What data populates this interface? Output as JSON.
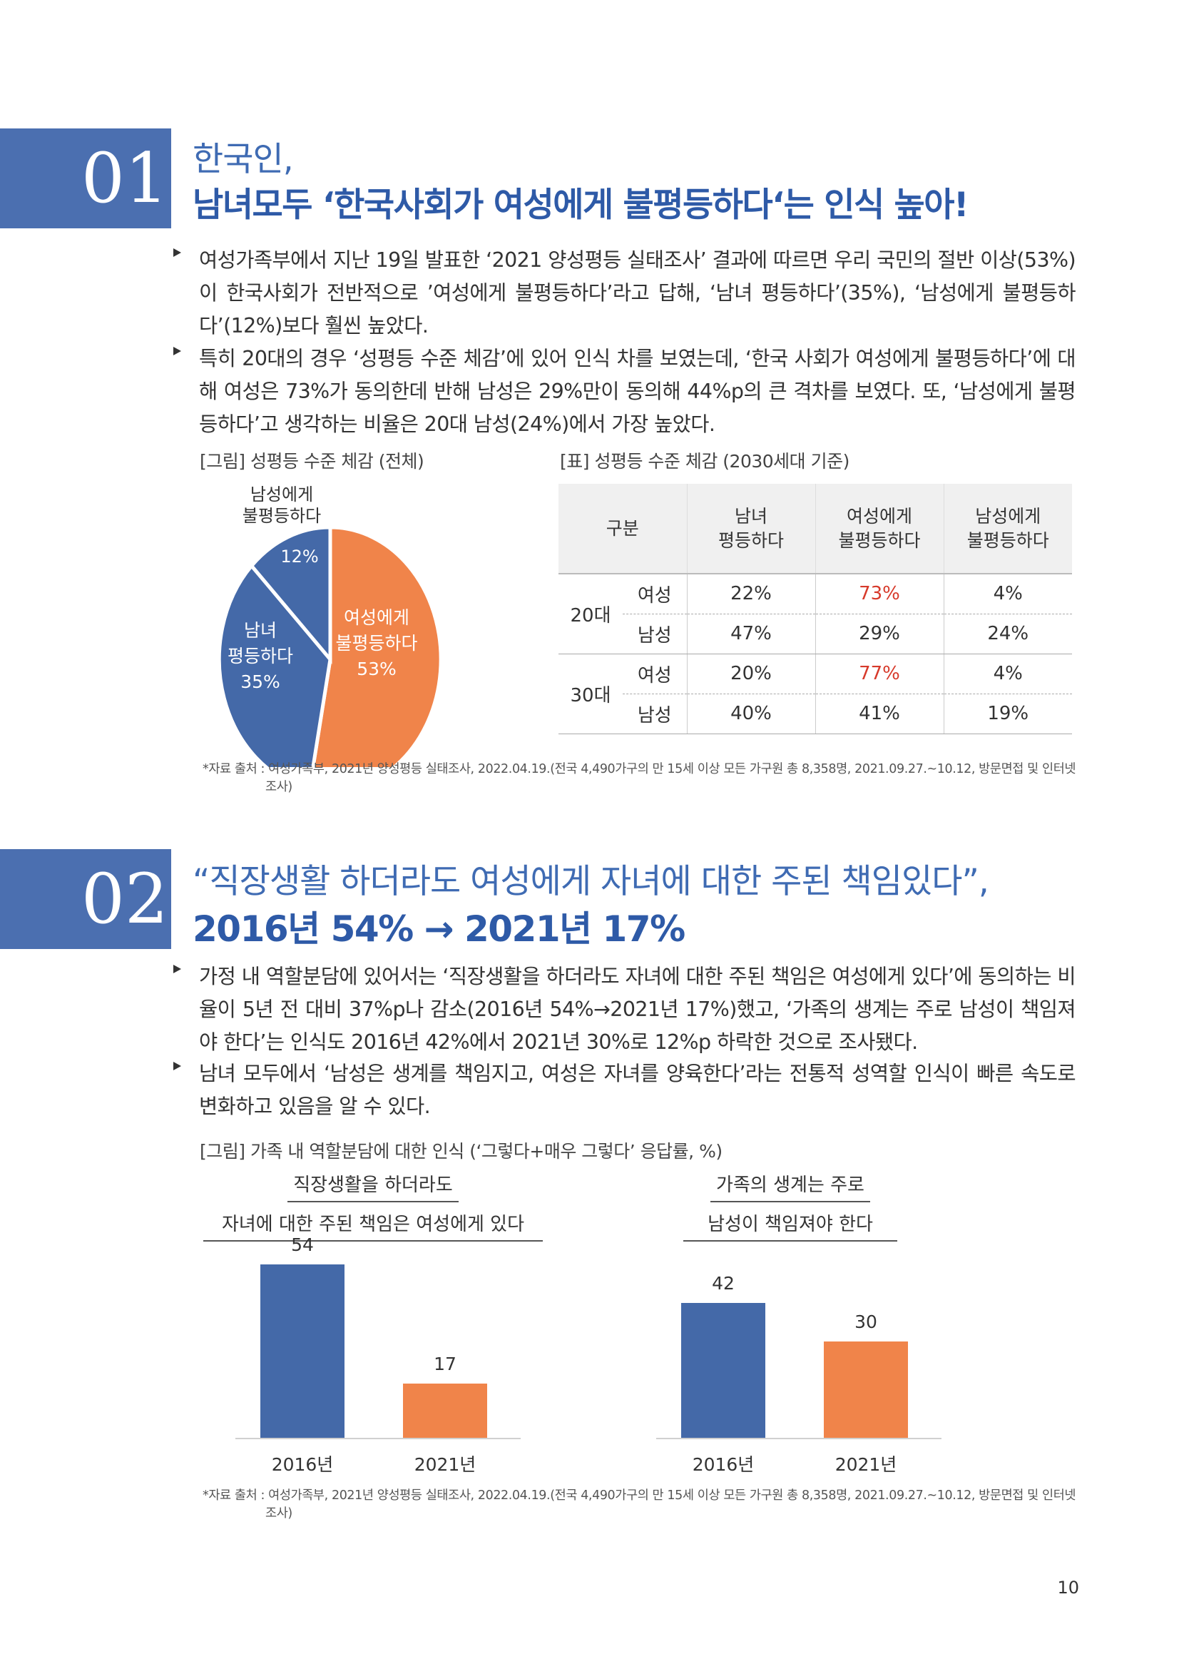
{
  "section1": {
    "number": "01",
    "title_line1": "한국인,",
    "title_line2": "남녀모두 ‘한국사회가 여성에게 불평등하다‘는 인식 높아!",
    "bullets": [
      "여성가족부에서 지난 19일 발표한 ‘2021 양성평등 실태조사’ 결과에 따르면 우리 국민의 절반 이상(53%)이 한국사회가 전반적으로 ’여성에게 불평등하다’라고 답해, ‘남녀 평등하다’(35%), ‘남성에게 불평등하다’(12%)보다 훨씬 높았다.",
      "특히 20대의 경우 ‘성평등 수준 체감’에 있어 인식 차를 보였는데, ‘한국 사회가 여성에게 불평등하다’에 대해 여성은 73%가 동의한데 반해 남성은 29%만이 동의해 44%p의 큰 격차를 보였다. 또, ‘남성에게 불평등하다’고 생각하는 비율은 20대 남성(24%)에서 가장 높았다."
    ],
    "figure_caption": "[그림] 성평등 수준 체감 (전체)",
    "table_caption": "[표] 성평등 수준 체감 (2030세대 기준)",
    "pie": {
      "slices": [
        {
          "label_lines": [
            "여성에게",
            "불평등하다"
          ],
          "value_text": "53%",
          "value": 53,
          "color": "#f0844a"
        },
        {
          "label_lines": [
            "남녀",
            "평등하다"
          ],
          "value_text": "35%",
          "value": 35,
          "color": "#4469a8"
        },
        {
          "label_lines": [
            "남성에게",
            "불평등하다"
          ],
          "value_text": "12%",
          "value": 12,
          "color": "#4469a8"
        }
      ]
    },
    "table": {
      "header_group": "구분",
      "columns": [
        [
          "남녀",
          "평등하다"
        ],
        [
          "여성에게",
          "불평등하다"
        ],
        [
          "남성에게",
          "불평등하다"
        ]
      ],
      "groups": [
        {
          "age": "20대",
          "rows": [
            {
              "gender": "여성",
              "values": [
                "22%",
                "73%",
                "4%"
              ]
            },
            {
              "gender": "남성",
              "values": [
                "47%",
                "29%",
                "24%"
              ]
            }
          ]
        },
        {
          "age": "30대",
          "rows": [
            {
              "gender": "여성",
              "values": [
                "20%",
                "77%",
                "4%"
              ]
            },
            {
              "gender": "남성",
              "values": [
                "40%",
                "41%",
                "19%"
              ]
            }
          ]
        }
      ],
      "highlight_color": "#d73a2b"
    },
    "source_line1": "*자료 출처 : 여성가족부, 2021년 양성평등 실태조사, 2022.04.19.(전국 4,490가구의 만 15세 이상 모든 가구원 총 8,358명, 2021.09.27.~10.12, 방문면접 및 인터넷",
    "source_line2": "조사)"
  },
  "section2": {
    "number": "02",
    "title_line1": "“직장생활 하더라도 여성에게 자녀에 대한 주된 책임있다”,",
    "title_line2": "2016년 54% → 2021년 17%",
    "bullets": [
      "가정 내 역할분담에 있어서는 ‘직장생활을 하더라도 자녀에 대한 주된 책임은 여성에게 있다’에 동의하는 비율이 5년 전 대비 37%p나 감소(2016년 54%→2021년 17%)했고, ‘가족의 생계는 주로 남성이 책임져야 한다’는 인식도 2016년 42%에서 2021년 30%로 12%p 하락한 것으로 조사됐다.",
      "남녀 모두에서 ‘남성은 생계를 책임지고, 여성은 자녀를 양육한다’라는 전통적 성역할 인식이 빠른 속도로 변화하고 있음을 알 수 있다."
    ],
    "figure_caption": "[그림] 가족 내 역할분담에 대한 인식 (‘그렇다+매우 그렇다’ 응답률, %)",
    "source_line1": "*자료 출처 : 여성가족부, 2021년 양성평등 실태조사, 2022.04.19.(전국 4,490가구의 만 15세 이상 모든 가구원 총 8,358명, 2021.09.27.~10.12, 방문면접 및 인터넷",
    "source_line2": "조사)"
  },
  "chart_data": [
    {
      "type": "bar",
      "title_lines": [
        "직장생활을 하더라도",
        "자녀에 대한 주된 책임은 여성에게 있다"
      ],
      "categories": [
        "2016년",
        "2021년"
      ],
      "values": [
        54,
        17
      ],
      "colors": [
        "#4469a8",
        "#f0844a"
      ]
    },
    {
      "type": "bar",
      "title_lines": [
        "가족의 생계는 주로",
        "남성이 책임져야 한다"
      ],
      "categories": [
        "2016년",
        "2021년"
      ],
      "values": [
        42,
        30
      ],
      "colors": [
        "#4469a8",
        "#f0844a"
      ]
    }
  ],
  "page_number": "10"
}
